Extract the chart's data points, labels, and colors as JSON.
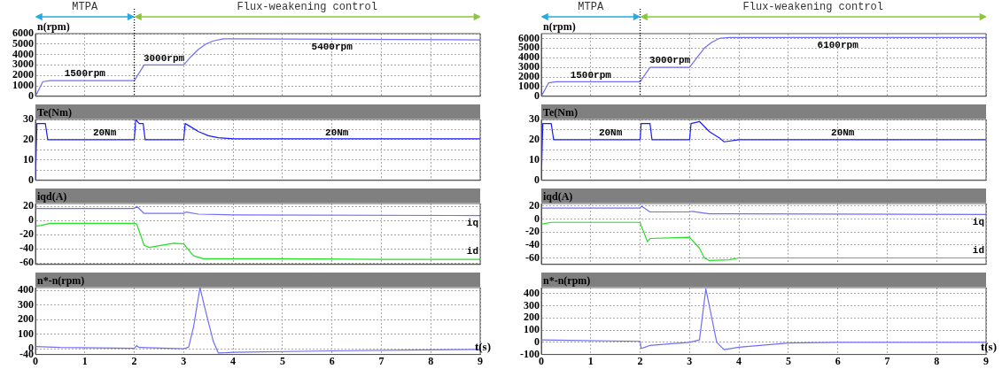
{
  "chart_data": [
    {
      "type": "line",
      "ylabel": "n(rpm)",
      "annotations": [
        "MTPA",
        "Flux-weakening control",
        {
          "text": "1500rpm",
          "x": 1,
          "y": 1500
        },
        {
          "text": "3000rpm",
          "x": 2.6,
          "y": 3000
        },
        {
          "text": "5400rpm",
          "x": 6,
          "y": 5400
        }
      ],
      "ref_lines": [
        {
          "axis": "x",
          "value": 2,
          "line_style": "dotted"
        }
      ],
      "series": [
        {
          "color": "#6f6ff5",
          "x": [
            0,
            0.15,
            0.3,
            2,
            2.2,
            3,
            3.15,
            3.3,
            3.45,
            3.6,
            3.8,
            4,
            9
          ],
          "values": [
            0,
            1400,
            1500,
            1500,
            3000,
            3000,
            3800,
            4500,
            5000,
            5300,
            5500,
            5500,
            5400
          ]
        }
      ],
      "xlim": [
        0,
        9
      ],
      "xticks": [
        0,
        1,
        2,
        3,
        4,
        5,
        6,
        7,
        8,
        9
      ],
      "ylim": [
        0,
        6000
      ],
      "yticks": [
        0,
        1000,
        2000,
        3000,
        4000,
        5000,
        6000
      ],
      "grid": true,
      "tick_labels": "y"
    },
    {
      "type": "line",
      "ylabel": "Te(Nm)",
      "annotations": [
        {
          "text": "20Nm",
          "x": 1.4,
          "y": 20
        },
        {
          "text": "20Nm",
          "x": 6.1,
          "y": 20
        }
      ],
      "series": [
        {
          "color": "#1a1aff",
          "x": [
            0,
            0.03,
            0.2,
            0.25,
            2,
            2.03,
            2.1,
            2.18,
            2.22,
            3,
            3.03,
            3.1,
            3.3,
            3.5,
            3.7,
            4,
            9
          ],
          "values": [
            0,
            28,
            28,
            20,
            20,
            30,
            28,
            28,
            20,
            20,
            28,
            27,
            24,
            22,
            21,
            20.5,
            20.5
          ]
        }
      ],
      "xlim": [
        0,
        9
      ],
      "xticks": [
        0,
        1,
        2,
        3,
        4,
        5,
        6,
        7,
        8,
        9
      ],
      "ylim": [
        0,
        30
      ],
      "yticks": [
        0,
        {
          "value": 5,
          "label": null
        },
        10,
        {
          "value": 15,
          "label": null
        },
        20,
        {
          "value": 25,
          "label": null
        },
        30
      ],
      "grid": true,
      "tick_labels": "y"
    },
    {
      "type": "line",
      "ylabel": "iqd(A)",
      "series": [
        {
          "name": "iq",
          "color": "#6f6ff5",
          "x": [
            0,
            2,
            2.05,
            2.2,
            3,
            3.05,
            3.3,
            4,
            9
          ],
          "values": [
            17,
            17,
            20,
            10,
            10,
            12,
            9,
            8,
            7
          ]
        },
        {
          "name": "id",
          "color": "#22e022",
          "x": [
            0,
            0.1,
            0.3,
            2,
            2.05,
            2.2,
            2.3,
            2.8,
            3,
            3.2,
            3.4,
            5,
            7,
            9
          ],
          "values": [
            -8,
            -7,
            -4,
            -4,
            -5,
            -35,
            -38,
            -32,
            -33,
            -50,
            -54,
            -54,
            -55,
            -55
          ]
        }
      ],
      "xlim": [
        0,
        9
      ],
      "xticks": [
        0,
        1,
        2,
        3,
        4,
        5,
        6,
        7,
        8,
        9
      ],
      "ylim": [
        -62,
        24
      ],
      "yticks": [
        -60,
        -40,
        -20,
        0,
        20
      ],
      "grid": true,
      "tick_labels": "y"
    },
    {
      "type": "line",
      "ylabel": "n*-n(rpm)",
      "xlabel": "t(s)",
      "series": [
        {
          "color": "#6f6ff5",
          "x": [
            0,
            0.5,
            2,
            2.05,
            2.1,
            3,
            3.1,
            3.2,
            3.33,
            3.45,
            3.6,
            3.7,
            4,
            6,
            9
          ],
          "values": [
            15,
            8,
            2,
            20,
            8,
            0,
            10,
            150,
            420,
            250,
            50,
            -30,
            -25,
            -15,
            -5
          ]
        }
      ],
      "xlim": [
        0,
        9
      ],
      "xticks": [
        0,
        1,
        2,
        3,
        4,
        5,
        6,
        7,
        8,
        9
      ],
      "ylim": [
        -40,
        420
      ],
      "yticks": [
        -40,
        0,
        100,
        200,
        300,
        400
      ],
      "grid": true
    },
    {
      "type": "line",
      "ylabel": "n(rpm)",
      "annotations": [
        "MTPA",
        "Flux-weakening control",
        {
          "text": "1500rpm",
          "x": 1,
          "y": 1500
        },
        {
          "text": "3000rpm",
          "x": 2.6,
          "y": 3000
        },
        {
          "text": "6100rpm",
          "x": 6,
          "y": 6100
        }
      ],
      "ref_lines": [
        {
          "axis": "x",
          "value": 2,
          "line_style": "dotted"
        }
      ],
      "series": [
        {
          "color": "#6f6ff5",
          "x": [
            0,
            0.15,
            0.3,
            2,
            2.2,
            3,
            3.15,
            3.3,
            3.45,
            3.6,
            3.8,
            4,
            9
          ],
          "values": [
            0,
            1400,
            1500,
            1500,
            3000,
            3000,
            4000,
            5000,
            5600,
            6000,
            6100,
            6100,
            6100
          ]
        }
      ],
      "xlim": [
        0,
        9
      ],
      "xticks": [
        0,
        1,
        2,
        3,
        4,
        5,
        6,
        7,
        8,
        9
      ],
      "ylim": [
        0,
        6500
      ],
      "yticks": [
        0,
        1000,
        2000,
        3000,
        4000,
        5000,
        6000
      ],
      "grid": true,
      "tick_labels": "y"
    },
    {
      "type": "line",
      "ylabel": "Te(Nm)",
      "annotations": [
        {
          "text": "20Nm",
          "x": 1.4,
          "y": 20
        },
        {
          "text": "20Nm",
          "x": 6.1,
          "y": 20
        }
      ],
      "series": [
        {
          "color": "#1a1aff",
          "x": [
            0,
            0.03,
            0.2,
            0.25,
            2,
            2.02,
            2.2,
            2.24,
            3,
            3.03,
            3.2,
            3.4,
            3.6,
            3.7,
            4,
            9
          ],
          "values": [
            0,
            28,
            28,
            20,
            20,
            28,
            28,
            20,
            20,
            28,
            29,
            24,
            21,
            19,
            20,
            20
          ]
        }
      ],
      "xlim": [
        0,
        9
      ],
      "xticks": [
        0,
        1,
        2,
        3,
        4,
        5,
        6,
        7,
        8,
        9
      ],
      "ylim": [
        0,
        30
      ],
      "yticks": [
        0,
        {
          "value": 5,
          "label": null
        },
        10,
        {
          "value": 15,
          "label": null
        },
        20,
        {
          "value": 25,
          "label": null
        },
        30
      ],
      "grid": true,
      "tick_labels": "y"
    },
    {
      "type": "line",
      "ylabel": "iqd(A)",
      "series": [
        {
          "name": "iq",
          "color": "#6f6ff5",
          "x": [
            0,
            2,
            2.03,
            2.2,
            3,
            3.05,
            3.4,
            4,
            9
          ],
          "values": [
            17,
            17,
            20,
            11,
            11,
            12,
            8,
            8,
            7
          ]
        },
        {
          "name": "id",
          "color": "#22e022",
          "x": [
            0,
            0.2,
            2,
            2.02,
            2.15,
            2.2,
            3,
            3.2,
            3.3,
            3.4,
            3.8,
            4,
            9
          ],
          "values": [
            -8,
            -5,
            -5,
            -10,
            -35,
            -30,
            -28,
            -45,
            -60,
            -64,
            -63,
            -60,
            -60
          ]
        }
      ],
      "xlim": [
        0,
        9
      ],
      "xticks": [
        0,
        1,
        2,
        3,
        4,
        5,
        6,
        7,
        8,
        9
      ],
      "ylim": [
        -70,
        24
      ],
      "yticks": [
        -60,
        -40,
        -20,
        0,
        20
      ],
      "grid": true,
      "tick_labels": "y"
    },
    {
      "type": "line",
      "ylabel": "n*-n(rpm)",
      "xlabel": "t(s)",
      "series": [
        {
          "color": "#6f6ff5",
          "x": [
            0,
            2,
            2.02,
            2.1,
            2.2,
            3,
            3.2,
            3.33,
            3.45,
            3.55,
            3.7,
            4,
            5,
            6,
            9
          ],
          "values": [
            20,
            8,
            -50,
            -40,
            -25,
            0,
            20,
            440,
            200,
            0,
            -60,
            -40,
            -5,
            0,
            0
          ]
        }
      ],
      "xlim": [
        0,
        9
      ],
      "xticks": [
        0,
        1,
        2,
        3,
        4,
        5,
        6,
        7,
        8,
        9
      ],
      "ylim": [
        -100,
        450
      ],
      "yticks": [
        -100,
        0,
        100,
        200,
        300,
        400
      ],
      "grid": true
    }
  ]
}
